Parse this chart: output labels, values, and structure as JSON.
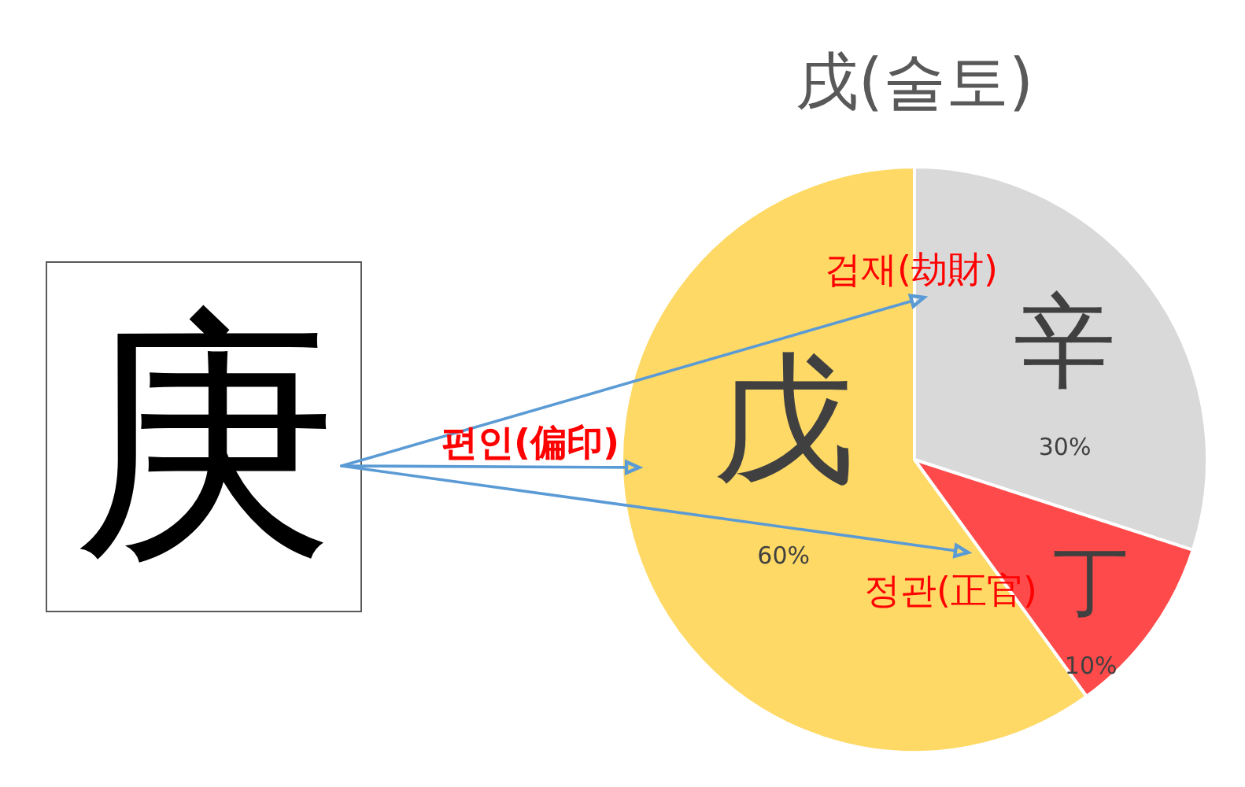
{
  "chart_data": {
    "type": "pie",
    "title": "戌(술토)",
    "categories": [
      "辛",
      "丁",
      "戊"
    ],
    "values": [
      30,
      10,
      60
    ],
    "colors": [
      "#d9d9d9",
      "#fe4a4a",
      "#fed966"
    ],
    "value_labels": [
      "30%",
      "10%",
      "60%"
    ],
    "annotations": [
      "庚",
      "겁재(劫財)",
      "정관(正官)",
      "편인(偏印)"
    ]
  }
}
